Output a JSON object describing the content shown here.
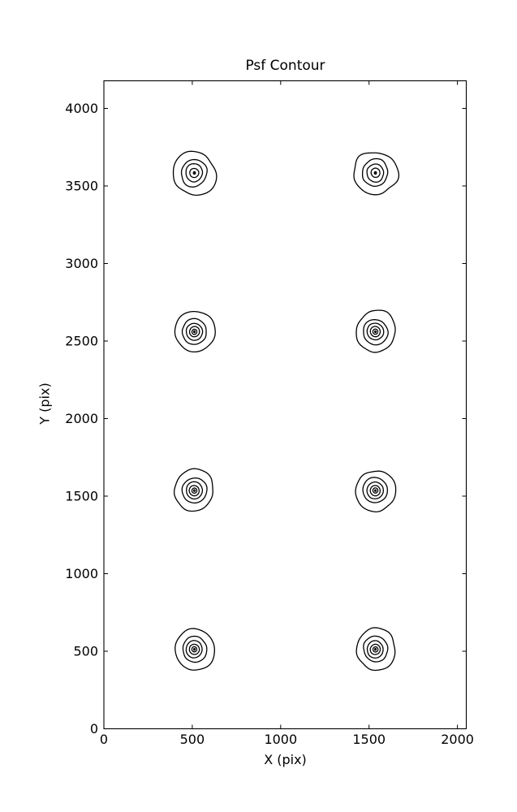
{
  "figure": {
    "title": "Psf Contour",
    "xlabel": "X (pix)",
    "ylabel": "Y (pix)",
    "background_color": "#ffffff",
    "line_color": "#000000"
  },
  "chart_data": {
    "type": "contour",
    "title": "Psf Contour",
    "xlabel": "X (pix)",
    "ylabel": "Y (pix)",
    "xlim": [
      0,
      2050
    ],
    "ylim": [
      0,
      4178
    ],
    "x_ticks": [
      0,
      500,
      1000,
      1500,
      2000
    ],
    "y_ticks": [
      0,
      500,
      1000,
      1500,
      2000,
      2500,
      3000,
      3500,
      4000
    ],
    "grid": false,
    "legend": null,
    "contour_color": "#000000",
    "psf_blobs": [
      {
        "x": 512,
        "y": 3584,
        "rings": [
          120,
          73,
          48,
          25
        ],
        "dot_radius": 9,
        "irregularity": 0.1
      },
      {
        "x": 1536,
        "y": 3584,
        "rings": [
          120,
          73,
          48,
          25
        ],
        "dot_radius": 9,
        "irregularity": 0.1
      },
      {
        "x": 512,
        "y": 2560,
        "rings": [
          112,
          69,
          46,
          28,
          14
        ],
        "dot_radius": 7,
        "irregularity": 0.06
      },
      {
        "x": 1536,
        "y": 2560,
        "rings": [
          112,
          69,
          46,
          28,
          14
        ],
        "dot_radius": 7,
        "irregularity": 0.06
      },
      {
        "x": 512,
        "y": 1536,
        "rings": [
          112,
          69,
          46,
          28,
          14
        ],
        "dot_radius": 7,
        "irregularity": 0.05
      },
      {
        "x": 1536,
        "y": 1536,
        "rings": [
          112,
          69,
          46,
          28,
          14
        ],
        "dot_radius": 7,
        "irregularity": 0.05
      },
      {
        "x": 512,
        "y": 512,
        "rings": [
          112,
          69,
          46,
          28,
          14
        ],
        "dot_radius": 7,
        "irregularity": 0.06
      },
      {
        "x": 1536,
        "y": 512,
        "rings": [
          112,
          69,
          46,
          28,
          14
        ],
        "dot_radius": 7,
        "irregularity": 0.06
      }
    ]
  }
}
